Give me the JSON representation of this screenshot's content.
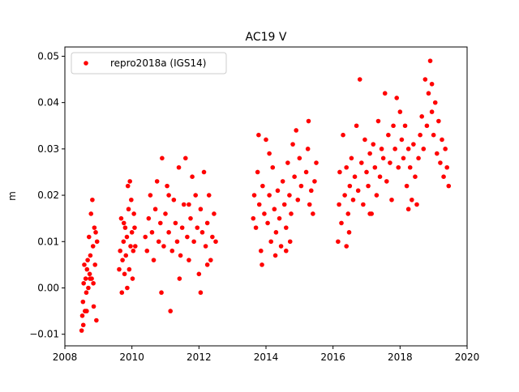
{
  "chart_data": {
    "type": "scatter",
    "title": "AC19 V",
    "xlabel": "",
    "ylabel": "m",
    "xlim": [
      2008.0,
      2020.0
    ],
    "ylim": [
      -0.0125,
      0.052
    ],
    "xticks": [
      2008,
      2010,
      2012,
      2014,
      2016,
      2018,
      2020
    ],
    "xtick_labels": [
      "2008",
      "2010",
      "2012",
      "2014",
      "2016",
      "2018",
      "2020"
    ],
    "yticks": [
      -0.01,
      0.0,
      0.01,
      0.02,
      0.03,
      0.04,
      0.05
    ],
    "ytick_labels": [
      "−0.01",
      "0.00",
      "0.01",
      "0.02",
      "0.03",
      "0.04",
      "0.05"
    ],
    "grid": false,
    "legend_position": "upper-left",
    "series": [
      {
        "name": "repro2018a (IGS14)",
        "color": "#ff0000",
        "marker": "circle",
        "points": [
          [
            2008.5,
            -0.0092
          ],
          [
            2008.52,
            -0.006
          ],
          [
            2008.54,
            -0.003
          ],
          [
            2008.56,
            0.001
          ],
          [
            2008.58,
            0.005
          ],
          [
            2008.6,
            -0.005
          ],
          [
            2008.62,
            0.002
          ],
          [
            2008.64,
            -0.001
          ],
          [
            2008.66,
            0.004
          ],
          [
            2008.68,
            0.006
          ],
          [
            2008.7,
            0.0
          ],
          [
            2008.72,
            0.011
          ],
          [
            2008.74,
            0.003
          ],
          [
            2008.76,
            0.007
          ],
          [
            2008.78,
            0.016
          ],
          [
            2008.8,
            0.002
          ],
          [
            2008.82,
            0.019
          ],
          [
            2008.84,
            0.009
          ],
          [
            2008.86,
            -0.004
          ],
          [
            2008.88,
            0.013
          ],
          [
            2008.9,
            0.005
          ],
          [
            2008.92,
            0.012
          ],
          [
            2008.94,
            -0.007
          ],
          [
            2008.96,
            0.01
          ],
          [
            2008.55,
            -0.008
          ],
          [
            2008.65,
            -0.005
          ],
          [
            2008.75,
            0.002
          ],
          [
            2008.85,
            0.001
          ],
          [
            2009.62,
            0.004
          ],
          [
            2009.65,
            0.008
          ],
          [
            2009.68,
            0.015
          ],
          [
            2009.7,
            -0.001
          ],
          [
            2009.72,
            0.006
          ],
          [
            2009.75,
            0.01
          ],
          [
            2009.78,
            0.003
          ],
          [
            2009.8,
            0.013
          ],
          [
            2009.82,
            0.007
          ],
          [
            2009.85,
            0.011
          ],
          [
            2009.88,
            0.022
          ],
          [
            2009.9,
            0.017
          ],
          [
            2009.92,
            0.004
          ],
          [
            2009.94,
            0.023
          ],
          [
            2009.96,
            0.009
          ],
          [
            2009.98,
            0.019
          ],
          [
            2010.0,
            0.012
          ],
          [
            2010.02,
            0.002
          ],
          [
            2010.04,
            0.008
          ],
          [
            2010.06,
            0.016
          ],
          [
            2010.08,
            0.013
          ],
          [
            2010.1,
            0.009
          ],
          [
            2009.86,
            0.0
          ],
          [
            2009.76,
            0.014
          ],
          [
            2010.4,
            0.011
          ],
          [
            2010.45,
            0.008
          ],
          [
            2010.5,
            0.015
          ],
          [
            2010.55,
            0.02
          ],
          [
            2010.6,
            0.012
          ],
          [
            2010.65,
            0.006
          ],
          [
            2010.7,
            0.017
          ],
          [
            2010.75,
            0.023
          ],
          [
            2010.8,
            0.01
          ],
          [
            2010.85,
            0.014
          ],
          [
            2010.9,
            0.028
          ],
          [
            2010.95,
            0.009
          ],
          [
            2011.0,
            0.016
          ],
          [
            2011.05,
            0.022
          ],
          [
            2011.1,
            0.012
          ],
          [
            2011.15,
            -0.005
          ],
          [
            2011.2,
            0.008
          ],
          [
            2011.25,
            0.019
          ],
          [
            2011.3,
            0.014
          ],
          [
            2011.35,
            0.01
          ],
          [
            2011.4,
            0.026
          ],
          [
            2011.45,
            0.007
          ],
          [
            2011.5,
            0.013
          ],
          [
            2011.55,
            0.018
          ],
          [
            2011.6,
            0.028
          ],
          [
            2011.65,
            0.011
          ],
          [
            2011.7,
            0.006
          ],
          [
            2011.75,
            0.015
          ],
          [
            2011.8,
            0.024
          ],
          [
            2011.85,
            0.01
          ],
          [
            2011.9,
            0.02
          ],
          [
            2011.95,
            0.013
          ],
          [
            2012.0,
            0.003
          ],
          [
            2012.05,
            0.017
          ],
          [
            2012.1,
            0.012
          ],
          [
            2012.15,
            0.025
          ],
          [
            2012.2,
            0.009
          ],
          [
            2012.25,
            0.014
          ],
          [
            2012.3,
            0.02
          ],
          [
            2012.35,
            0.006
          ],
          [
            2012.4,
            0.011
          ],
          [
            2012.45,
            0.016
          ],
          [
            2012.5,
            0.01
          ],
          [
            2010.88,
            -0.001
          ],
          [
            2011.42,
            0.002
          ],
          [
            2012.05,
            -0.001
          ],
          [
            2011.1,
            0.02
          ],
          [
            2011.7,
            0.018
          ],
          [
            2012.25,
            0.005
          ],
          [
            2013.62,
            0.015
          ],
          [
            2013.65,
            0.02
          ],
          [
            2013.7,
            0.013
          ],
          [
            2013.75,
            0.025
          ],
          [
            2013.8,
            0.018
          ],
          [
            2013.85,
            0.008
          ],
          [
            2013.9,
            0.022
          ],
          [
            2013.95,
            0.016
          ],
          [
            2014.0,
            0.032
          ],
          [
            2014.05,
            0.014
          ],
          [
            2014.1,
            0.02
          ],
          [
            2014.15,
            0.01
          ],
          [
            2014.2,
            0.026
          ],
          [
            2014.25,
            0.017
          ],
          [
            2014.3,
            0.012
          ],
          [
            2014.35,
            0.021
          ],
          [
            2014.4,
            0.015
          ],
          [
            2014.45,
            0.009
          ],
          [
            2014.5,
            0.023
          ],
          [
            2014.55,
            0.018
          ],
          [
            2014.6,
            0.013
          ],
          [
            2014.65,
            0.027
          ],
          [
            2014.7,
            0.02
          ],
          [
            2014.75,
            0.016
          ],
          [
            2014.8,
            0.031
          ],
          [
            2014.85,
            0.024
          ],
          [
            2014.9,
            0.034
          ],
          [
            2014.95,
            0.019
          ],
          [
            2015.0,
            0.028
          ],
          [
            2015.05,
            0.022
          ],
          [
            2015.2,
            0.025
          ],
          [
            2015.25,
            0.03
          ],
          [
            2015.3,
            0.018
          ],
          [
            2015.35,
            0.021
          ],
          [
            2015.4,
            0.016
          ],
          [
            2015.45,
            0.023
          ],
          [
            2015.5,
            0.027
          ],
          [
            2015.27,
            0.036
          ],
          [
            2013.88,
            0.005
          ],
          [
            2014.28,
            0.007
          ],
          [
            2014.6,
            0.008
          ],
          [
            2013.78,
            0.033
          ],
          [
            2014.1,
            0.029
          ],
          [
            2014.72,
            0.01
          ],
          [
            2016.15,
            0.01
          ],
          [
            2016.18,
            0.018
          ],
          [
            2016.2,
            0.025
          ],
          [
            2016.25,
            0.014
          ],
          [
            2016.3,
            0.033
          ],
          [
            2016.35,
            0.02
          ],
          [
            2016.4,
            0.026
          ],
          [
            2016.45,
            0.016
          ],
          [
            2016.5,
            0.022
          ],
          [
            2016.55,
            0.028
          ],
          [
            2016.6,
            0.019
          ],
          [
            2016.65,
            0.024
          ],
          [
            2016.7,
            0.035
          ],
          [
            2016.75,
            0.021
          ],
          [
            2016.8,
            0.045
          ],
          [
            2016.85,
            0.027
          ],
          [
            2016.9,
            0.018
          ],
          [
            2016.95,
            0.032
          ],
          [
            2017.0,
            0.025
          ],
          [
            2017.05,
            0.022
          ],
          [
            2017.1,
            0.029
          ],
          [
            2017.15,
            0.016
          ],
          [
            2017.2,
            0.031
          ],
          [
            2017.25,
            0.026
          ],
          [
            2017.3,
            0.02
          ],
          [
            2017.35,
            0.036
          ],
          [
            2017.4,
            0.024
          ],
          [
            2017.45,
            0.03
          ],
          [
            2017.5,
            0.028
          ],
          [
            2017.55,
            0.042
          ],
          [
            2017.6,
            0.023
          ],
          [
            2017.65,
            0.033
          ],
          [
            2017.7,
            0.027
          ],
          [
            2017.75,
            0.019
          ],
          [
            2017.8,
            0.035
          ],
          [
            2017.85,
            0.03
          ],
          [
            2017.9,
            0.041
          ],
          [
            2017.95,
            0.026
          ],
          [
            2018.0,
            0.038
          ],
          [
            2018.05,
            0.032
          ],
          [
            2018.1,
            0.028
          ],
          [
            2018.15,
            0.035
          ],
          [
            2018.2,
            0.022
          ],
          [
            2018.25,
            0.03
          ],
          [
            2018.3,
            0.026
          ],
          [
            2018.35,
            0.019
          ],
          [
            2018.4,
            0.031
          ],
          [
            2018.45,
            0.024
          ],
          [
            2018.5,
            0.018
          ],
          [
            2018.55,
            0.028
          ],
          [
            2018.6,
            0.033
          ],
          [
            2018.65,
            0.037
          ],
          [
            2018.7,
            0.03
          ],
          [
            2018.75,
            0.045
          ],
          [
            2018.8,
            0.035
          ],
          [
            2018.85,
            0.042
          ],
          [
            2018.9,
            0.049
          ],
          [
            2018.95,
            0.038
          ],
          [
            2019.0,
            0.033
          ],
          [
            2019.05,
            0.04
          ],
          [
            2019.1,
            0.029
          ],
          [
            2019.15,
            0.036
          ],
          [
            2019.2,
            0.027
          ],
          [
            2019.25,
            0.032
          ],
          [
            2019.3,
            0.024
          ],
          [
            2019.35,
            0.03
          ],
          [
            2019.4,
            0.026
          ],
          [
            2019.45,
            0.022
          ],
          [
            2016.48,
            0.012
          ],
          [
            2017.1,
            0.016
          ],
          [
            2018.25,
            0.017
          ],
          [
            2018.95,
            0.044
          ],
          [
            2016.4,
            0.009
          ]
        ]
      }
    ]
  }
}
